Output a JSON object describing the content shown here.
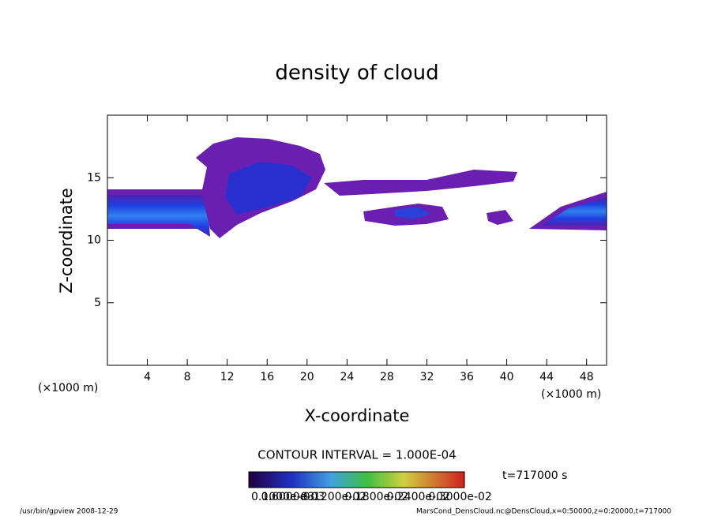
{
  "chart_data": {
    "type": "contour",
    "title": "density of cloud",
    "x_label": "X-coordinate",
    "y_label": "Z-coordinate",
    "x_unit_left": "(×1000 m)",
    "x_unit_right": "(×1000 m)",
    "contour_interval": "CONTOUR INTERVAL = 1.000E-04",
    "time_label": "t=717000 s",
    "footer_left": "/usr/bin/gpview  2008-12-29",
    "footer_right": "MarsCond_DensCloud.nc@DensCloud,x=0:50000,z=0:20000,t=717000",
    "colorbar_labels": [
      "0.1000e-03",
      "0.6000e-03",
      "0.1200e-02",
      "0.1800e-02",
      "0.2400e-02",
      "0.3000e-02"
    ],
    "xlim": [
      0,
      50
    ],
    "ylim": [
      0,
      20
    ],
    "xticks": [
      4,
      8,
      12,
      16,
      20,
      24,
      28,
      32,
      36,
      40,
      44,
      48
    ],
    "yticks": [
      5,
      10,
      15
    ]
  }
}
